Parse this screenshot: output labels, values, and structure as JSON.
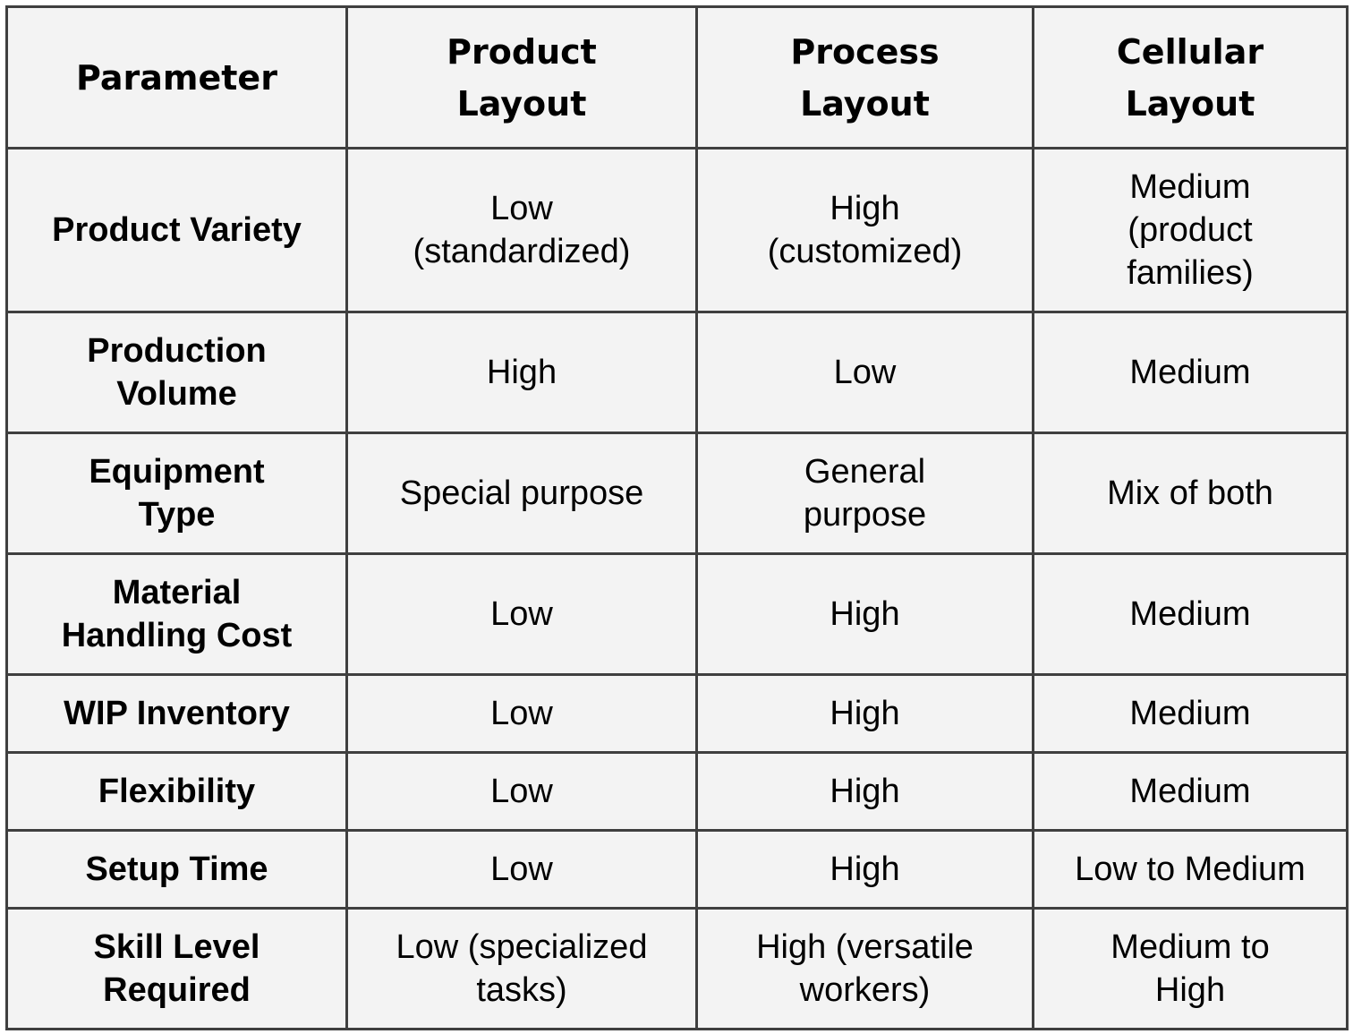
{
  "table": {
    "headers": [
      "Parameter",
      "Product Layout",
      "Process Layout",
      "Cellular Layout"
    ],
    "rows": [
      {
        "parameter": "Product Variety",
        "product": "Low (standardized)",
        "process": "High (customized)",
        "cellular": "Medium (product families)"
      },
      {
        "parameter": "Production Volume",
        "product": "High",
        "process": "Low",
        "cellular": "Medium"
      },
      {
        "parameter": "Equipment Type",
        "product": "Special purpose",
        "process": "General purpose",
        "cellular": "Mix of both"
      },
      {
        "parameter": "Material Handling Cost",
        "product": "Low",
        "process": "High",
        "cellular": "Medium"
      },
      {
        "parameter": "WIP Inventory",
        "product": "Low",
        "process": "High",
        "cellular": "Medium"
      },
      {
        "parameter": "Flexibility",
        "product": "Low",
        "process": "High",
        "cellular": "Medium"
      },
      {
        "parameter": "Setup Time",
        "product": "Low",
        "process": "High",
        "cellular": "Low to Medium"
      },
      {
        "parameter": "Skill Level Required",
        "product": "Low (specialized tasks)",
        "process": "High (versatile workers)",
        "cellular": "Medium to High"
      }
    ]
  },
  "colors": {
    "background": "#f3f3f3",
    "border": "#3f3f3f",
    "text": "#000000"
  }
}
